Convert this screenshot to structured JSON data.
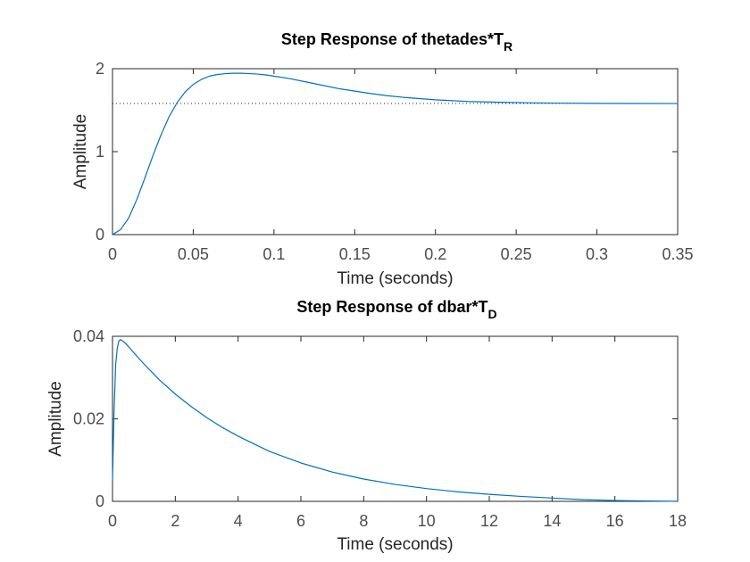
{
  "colors": {
    "background": "#ffffff",
    "axes": "#262626",
    "tick_text": "#4d4d4d",
    "curve": "#0072bd",
    "steady_state_line": "#262626"
  },
  "chart_data": [
    {
      "type": "line",
      "title": "Step Response of thetades*T",
      "title_subscript": "R",
      "xlabel": "Time (seconds)",
      "ylabel": "Amplitude",
      "xlim": [
        0,
        0.35
      ],
      "ylim": [
        0,
        2
      ],
      "xticks": [
        0,
        0.05,
        0.1,
        0.15,
        0.2,
        0.25,
        0.3,
        0.35
      ],
      "xtick_labels": [
        "0",
        "0.05",
        "0.1",
        "0.15",
        "0.2",
        "0.25",
        "0.3",
        "0.35"
      ],
      "yticks": [
        0,
        1,
        2
      ],
      "ytick_labels": [
        "0",
        "1",
        "2"
      ],
      "grid": false,
      "steady_state": 1.58,
      "steady_state_line_style": "dotted",
      "series": [
        {
          "x": [
            0,
            0.005,
            0.01,
            0.015,
            0.02,
            0.025,
            0.03,
            0.035,
            0.04,
            0.045,
            0.05,
            0.055,
            0.06,
            0.065,
            0.07,
            0.075,
            0.08,
            0.085,
            0.09,
            0.095,
            0.1,
            0.11,
            0.12,
            0.13,
            0.14,
            0.15,
            0.16,
            0.17,
            0.18,
            0.19,
            0.2,
            0.22,
            0.24,
            0.26,
            0.28,
            0.3,
            0.32,
            0.35
          ],
          "values": [
            0,
            0.06,
            0.2,
            0.42,
            0.68,
            0.95,
            1.2,
            1.42,
            1.59,
            1.72,
            1.81,
            1.87,
            1.91,
            1.93,
            1.94,
            1.945,
            1.945,
            1.94,
            1.935,
            1.925,
            1.91,
            1.88,
            1.84,
            1.8,
            1.76,
            1.73,
            1.7,
            1.675,
            1.655,
            1.64,
            1.625,
            1.605,
            1.595,
            1.588,
            1.584,
            1.582,
            1.581,
            1.58
          ]
        }
      ]
    },
    {
      "type": "line",
      "title": "Step Response of dbar*T",
      "title_subscript": "D",
      "xlabel": "Time (seconds)",
      "ylabel": "Amplitude",
      "xlim": [
        0,
        18
      ],
      "ylim": [
        0,
        0.04
      ],
      "xticks": [
        0,
        2,
        4,
        6,
        8,
        10,
        12,
        14,
        16,
        18
      ],
      "xtick_labels": [
        "0",
        "2",
        "4",
        "6",
        "8",
        "10",
        "12",
        "14",
        "16",
        "18"
      ],
      "yticks": [
        0,
        0.02,
        0.04
      ],
      "ytick_labels": [
        "0",
        "0.02",
        "0.04"
      ],
      "grid": false,
      "steady_state": 0,
      "steady_state_line_style": "dotted",
      "series": [
        {
          "x": [
            0,
            0.05,
            0.1,
            0.15,
            0.2,
            0.25,
            0.3,
            0.4,
            0.5,
            0.75,
            1,
            1.5,
            2,
            2.5,
            3,
            3.5,
            4,
            5,
            6,
            7,
            8,
            9,
            10,
            11,
            12,
            13,
            14,
            15,
            16,
            17,
            18
          ],
          "values": [
            0.005,
            0.022,
            0.033,
            0.037,
            0.0388,
            0.0392,
            0.039,
            0.0384,
            0.0376,
            0.0354,
            0.0333,
            0.0294,
            0.026,
            0.023,
            0.0203,
            0.0179,
            0.0158,
            0.0121,
            0.0093,
            0.0071,
            0.0054,
            0.0041,
            0.0031,
            0.0023,
            0.0017,
            0.0012,
            0.0008,
            0.0004,
            0.0002,
            0.0001,
            0
          ]
        }
      ]
    }
  ]
}
